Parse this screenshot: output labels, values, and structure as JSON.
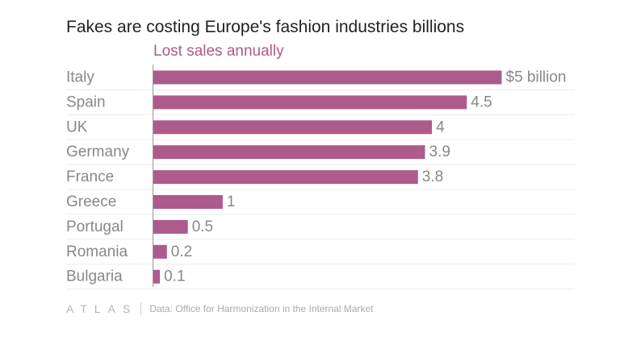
{
  "chart_data": {
    "type": "bar",
    "orientation": "horizontal",
    "title": "Fakes are costing Europe's fashion industries billions",
    "subtitle": "Lost sales annually",
    "categories": [
      "Italy",
      "Spain",
      "UK",
      "Germany",
      "France",
      "Greece",
      "Portugal",
      "Romania",
      "Bulgaria"
    ],
    "values": [
      5,
      4.5,
      4,
      3.9,
      3.8,
      1,
      0.5,
      0.2,
      0.1
    ],
    "value_labels": [
      "$5 billion",
      "4.5",
      "4",
      "3.9",
      "3.8",
      "1",
      "0.5",
      "0.2",
      "0.1"
    ],
    "unit": "billion USD",
    "xlim": [
      0,
      5
    ],
    "bar_color": "#ad5b8c",
    "label_color": "#888888",
    "grid": true
  },
  "footer": {
    "logo": "ATLAS",
    "source": "Data: Office for Harmonization in the Internal Market"
  }
}
